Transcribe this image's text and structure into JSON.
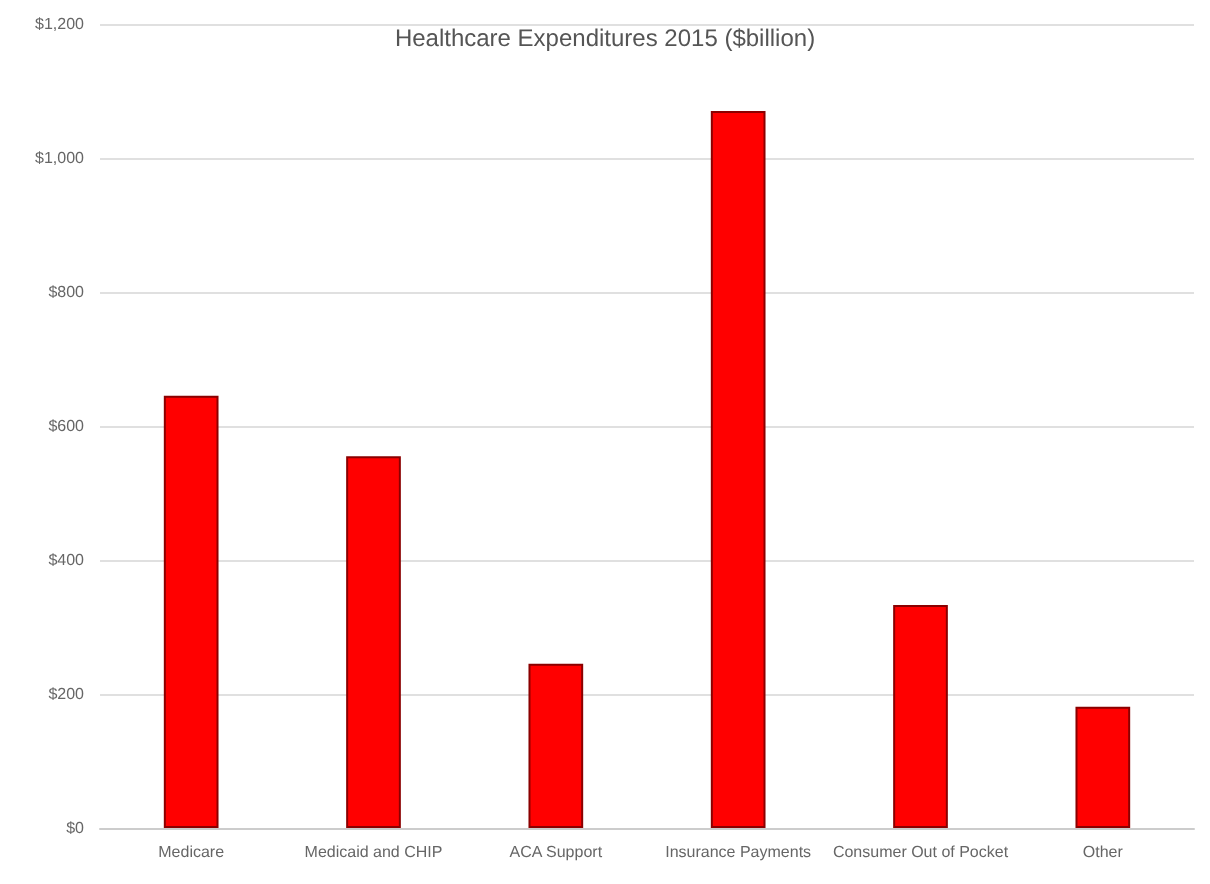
{
  "chart_data": {
    "type": "bar",
    "title": "Healthcare Expenditures 2015 ($billion)",
    "categories": [
      "Medicare",
      "Medicaid and CHIP",
      "ACA Support",
      "Insurance Payments",
      "Consumer Out of Pocket",
      "Other"
    ],
    "values": [
      645,
      555,
      245,
      1070,
      333,
      181
    ],
    "color": "#ff0000",
    "ylim": [
      0,
      1200
    ],
    "yticks": [
      {
        "value": 0,
        "label": "$0"
      },
      {
        "value": 200,
        "label": "$200"
      },
      {
        "value": 400,
        "label": "$400"
      },
      {
        "value": 600,
        "label": "$600"
      },
      {
        "value": 800,
        "label": "$800"
      },
      {
        "value": 1000,
        "label": "$1,000"
      },
      {
        "value": 1200,
        "label": "$1,200"
      }
    ],
    "grid": "y"
  }
}
